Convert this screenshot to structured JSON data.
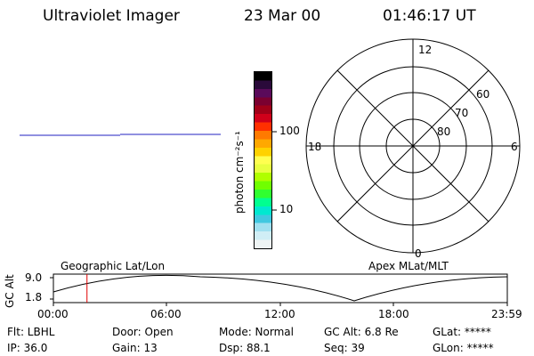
{
  "header": {
    "title": "Ultraviolet Imager",
    "date": "23 Mar 00",
    "time": "01:46:17 UT"
  },
  "colorbar": {
    "label": "photon cm⁻²s⁻¹",
    "ticks": [
      "100",
      "10"
    ],
    "colors": [
      "#000000",
      "#2a0a3a",
      "#5a0a5a",
      "#7a0030",
      "#a00018",
      "#d0001a",
      "#ff3000",
      "#ff7a00",
      "#ffa800",
      "#ffd200",
      "#ffff50",
      "#e8ff40",
      "#b0ff00",
      "#70ff00",
      "#30ff30",
      "#00ff90",
      "#00e8d0",
      "#40c8e0",
      "#a0e0f0",
      "#d0eef6",
      "#eef4f4"
    ]
  },
  "polar_plot": {
    "clock_labels": {
      "top": "12",
      "bottom": "0",
      "left": "18",
      "right": "6"
    },
    "lat_labels": [
      "60",
      "70",
      "80"
    ]
  },
  "timeline": {
    "axis_label": "GC Alt",
    "y_ticks": [
      "9.0",
      "1.8"
    ],
    "left_label": "Geographic Lat/Lon",
    "right_label": "Apex MLat/MLT",
    "x_ticks": [
      "00:00",
      "06:00",
      "12:00",
      "18:00",
      "23:59"
    ],
    "marker_time_fraction": 0.074
  },
  "info": {
    "flt": "Flt: LBHL",
    "door": "Door: Open",
    "mode": "Mode: Normal",
    "gc_alt": "GC Alt: 6.8 Re",
    "glat": "GLat: *****",
    "ip": "IP: 36.0",
    "gain": "Gain: 13",
    "dsp": "Dsp:  88.1",
    "seq": "Seq: 39",
    "glon": "GLon: *****"
  }
}
